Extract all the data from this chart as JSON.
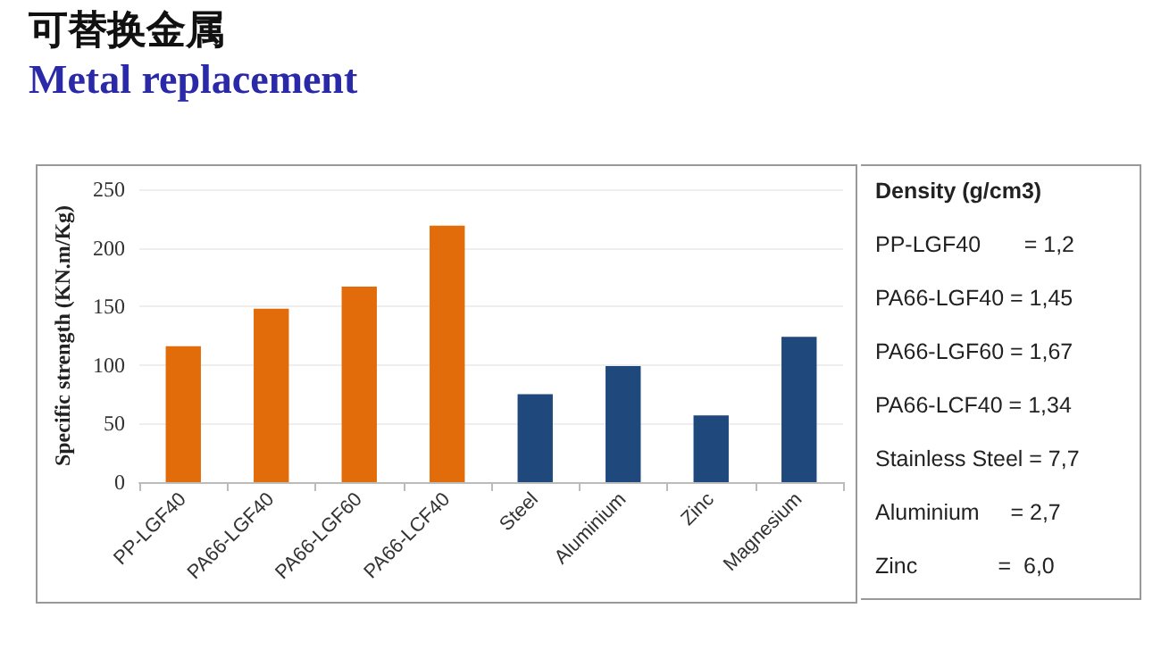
{
  "chart_data": {
    "type": "bar",
    "title": "可替换金属",
    "subtitle": "Metal replacement",
    "ylabel": "Specific strength (KN.m/Kg)",
    "categories": [
      "PP-LGF40",
      "PA66-LGF40",
      "PA66-LGF60",
      "PA66-LCF40",
      "Steel",
      "Aluminium",
      "Zinc",
      "Magnesium"
    ],
    "values": [
      116,
      148,
      167,
      219,
      75,
      99,
      57,
      124
    ],
    "colors": [
      "#e36c0a",
      "#e36c0a",
      "#e36c0a",
      "#e36c0a",
      "#1f497d",
      "#1f497d",
      "#1f497d",
      "#1f497d"
    ],
    "ylim": [
      0,
      250
    ],
    "yticks": [
      0,
      50,
      100,
      150,
      200,
      250
    ],
    "grid": "y",
    "annotations": [
      "Density (g/cm3)",
      "PP-LGF40       = 1,2",
      "PA66-LGF40 = 1,45",
      "PA66-LGF60 = 1,67",
      "PA66-LCF40 = 1,34",
      "Stainless Steel = 7,7",
      "Aluminium     = 2,7",
      "Zinc             =  6,0"
    ]
  }
}
